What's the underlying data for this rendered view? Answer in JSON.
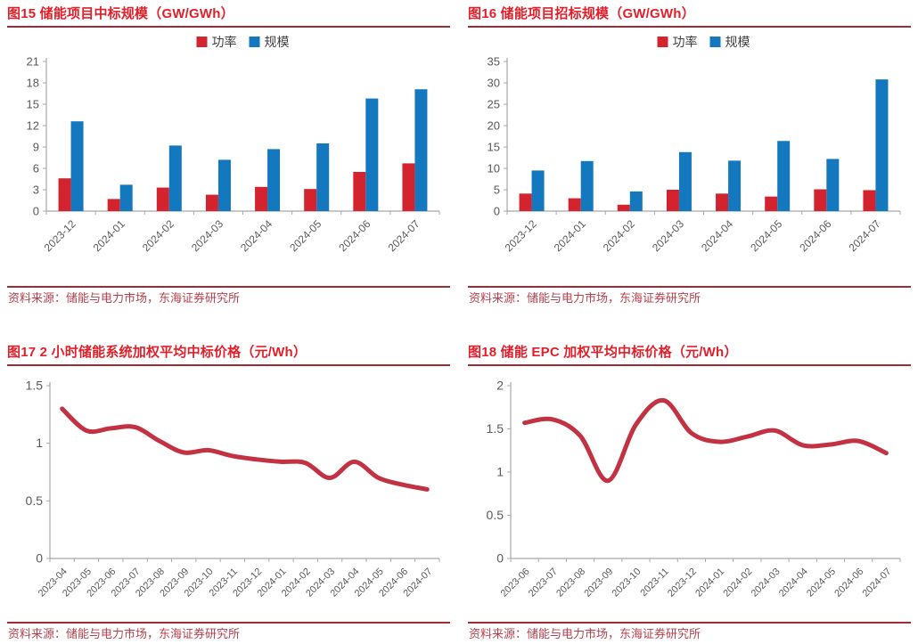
{
  "colors": {
    "title_red": "#e31e28",
    "rule_dark_red": "#a02b35",
    "bar_power_red": "#d2232e",
    "bar_scale_blue": "#1478be",
    "line_red": "#c23243",
    "axis_line": "#a8a8a8",
    "axis_text": "#595959",
    "legend_text": "#3f3f3f",
    "source_red": "#b5404d"
  },
  "panels": [
    {
      "title": "图15 储能项目中标规模（GW/GWh）",
      "source": "资料来源：储能与电力市场，东海证券研究所"
    },
    {
      "title": "图16 储能项目招标规模（GW/GWh）",
      "source": "资料来源：储能与电力市场，东海证券研究所"
    },
    {
      "title": "图17 2 小时储能系统加权平均中标价格（元/Wh）",
      "source": "资料来源：储能与电力市场，东海证券研究所"
    },
    {
      "title": "图18 储能 EPC 加权平均中标价格（元/Wh）",
      "source": "资料来源：储能与电力市场，东海证券研究所"
    }
  ],
  "chart_data": [
    {
      "type": "bar",
      "title": "图15 储能项目中标规模（GW/GWh）",
      "categories": [
        "2023-12",
        "2024-01",
        "2024-02",
        "2024-03",
        "2024-04",
        "2024-05",
        "2024-06",
        "2024-07"
      ],
      "series": [
        {
          "name": "功率",
          "color": "#d2232e",
          "values": [
            4.6,
            1.7,
            3.3,
            2.3,
            3.4,
            3.1,
            5.5,
            6.7
          ]
        },
        {
          "name": "规模",
          "color": "#1478be",
          "values": [
            12.6,
            3.7,
            9.2,
            7.2,
            8.7,
            9.5,
            15.8,
            17.1
          ]
        }
      ],
      "xlabel": "",
      "ylabel": "",
      "yticks": [
        0,
        3,
        6,
        9,
        12,
        15,
        18,
        21
      ],
      "ylim": [
        0,
        21
      ],
      "grid": false,
      "legend_position": "top-center"
    },
    {
      "type": "bar",
      "title": "图16 储能项目招标规模（GW/GWh）",
      "categories": [
        "2023-12",
        "2024-01",
        "2024-02",
        "2024-03",
        "2024-04",
        "2024-05",
        "2024-06",
        "2024-07"
      ],
      "series": [
        {
          "name": "功率",
          "color": "#d2232e",
          "values": [
            4.1,
            3.0,
            1.5,
            5.0,
            4.1,
            3.4,
            5.1,
            4.9
          ]
        },
        {
          "name": "规模",
          "color": "#1478be",
          "values": [
            9.5,
            11.7,
            4.6,
            13.8,
            11.8,
            16.4,
            12.2,
            30.8
          ]
        }
      ],
      "xlabel": "",
      "ylabel": "",
      "yticks": [
        0,
        5,
        10,
        15,
        20,
        25,
        30,
        35
      ],
      "ylim": [
        0,
        35
      ],
      "grid": false,
      "legend_position": "top-center"
    },
    {
      "type": "line",
      "title": "图17 2 小时储能系统加权平均中标价格（元/Wh）",
      "categories": [
        "2023-04",
        "2023-05",
        "2023-06",
        "2023-07",
        "2023-08",
        "2023-09",
        "2023-10",
        "2023-11",
        "2023-12",
        "2024-01",
        "2024-02",
        "2024-03",
        "2024-04",
        "2024-05",
        "2024-06",
        "2024-07"
      ],
      "series": [
        {
          "name": "2小时储能系统加权平均中标价格",
          "color": "#c23243",
          "values": [
            1.3,
            1.11,
            1.13,
            1.14,
            1.02,
            0.92,
            0.94,
            0.89,
            0.86,
            0.84,
            0.83,
            0.7,
            0.84,
            0.7,
            0.64,
            0.6
          ]
        }
      ],
      "xlabel": "",
      "ylabel": "",
      "yticks": [
        0,
        0.5,
        1,
        1.5
      ],
      "ylim": [
        0,
        1.5
      ],
      "grid": false,
      "legend_position": "none"
    },
    {
      "type": "line",
      "title": "图18 储能 EPC 加权平均中标价格（元/Wh）",
      "categories": [
        "2023-06",
        "2023-07",
        "2023-08",
        "2023-09",
        "2023-10",
        "2023-11",
        "2023-12",
        "2024-01",
        "2024-02",
        "2024-03",
        "2024-04",
        "2024-05",
        "2024-06",
        "2024-07"
      ],
      "series": [
        {
          "name": "储能EPC加权平均中标价格",
          "color": "#c23243",
          "values": [
            1.57,
            1.61,
            1.42,
            0.9,
            1.55,
            1.83,
            1.45,
            1.35,
            1.41,
            1.48,
            1.31,
            1.32,
            1.36,
            1.22
          ]
        }
      ],
      "xlabel": "",
      "ylabel": "",
      "yticks": [
        0,
        0.5,
        1,
        1.5,
        2
      ],
      "ylim": [
        0,
        2
      ],
      "grid": false,
      "legend_position": "none"
    }
  ]
}
